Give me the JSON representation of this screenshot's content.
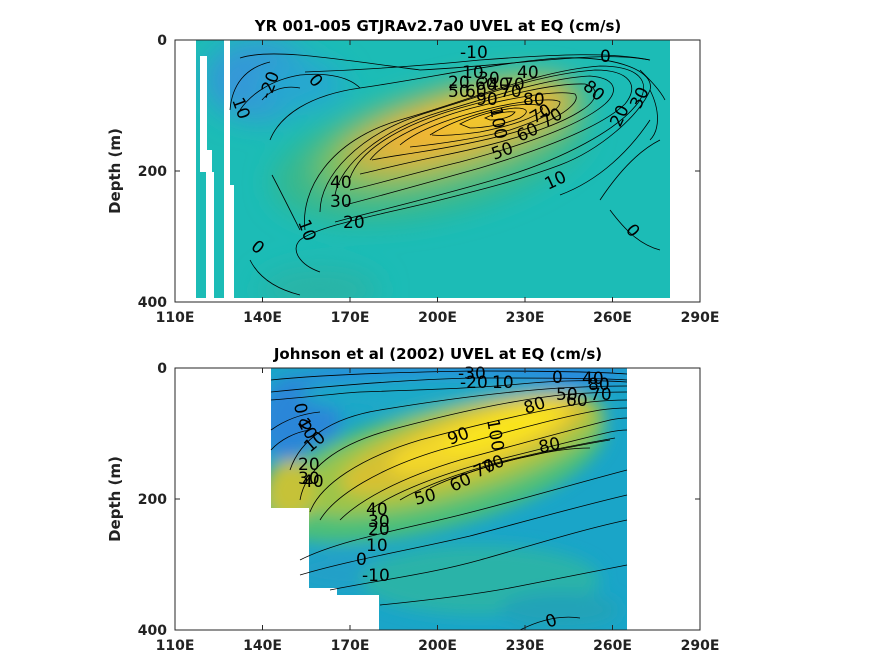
{
  "chart_data": [
    {
      "type": "contour",
      "title": "YR 001-005 GTJRAv2.7a0 UVEL at EQ (cm/s)",
      "ylabel": "Depth (m)",
      "xlabel": "",
      "xticks": [
        "110E",
        "140E",
        "170E",
        "200E",
        "230E",
        "260E",
        "290E"
      ],
      "yticks": [
        "0",
        "200",
        "400"
      ],
      "xlim": [
        110,
        290
      ],
      "ylim": [
        0,
        400
      ],
      "y_reversed": true,
      "contour_levels": [
        -30,
        -20,
        -10,
        0,
        10,
        20,
        30,
        40,
        50,
        60,
        70,
        80,
        90,
        100
      ],
      "contour_labels": [
        "-10",
        "-20",
        "10",
        "0",
        "20",
        "10",
        "30",
        "40",
        "50",
        "60",
        "70",
        "80",
        "90",
        "100",
        "40",
        "60",
        "70",
        "80",
        "0",
        "20",
        "30",
        "70",
        "50",
        "60",
        "70",
        "10",
        "40",
        "30",
        "20",
        "10",
        "0",
        "0"
      ],
      "core": {
        "lon": 225,
        "depth": 115,
        "max_speed": 100
      },
      "colormap": "parula"
    },
    {
      "type": "contour",
      "title": "Johnson et al (2002) UVEL at EQ (cm/s)",
      "ylabel": "Depth (m)",
      "xlabel": "",
      "xticks": [
        "110E",
        "140E",
        "170E",
        "200E",
        "230E",
        "260E",
        "290E"
      ],
      "yticks": [
        "0",
        "200",
        "400"
      ],
      "xlim": [
        110,
        290
      ],
      "ylim": [
        0,
        400
      ],
      "y_reversed": true,
      "data_extent_lon": [
        143,
        265
      ],
      "contour_levels": [
        -30,
        -20,
        -10,
        0,
        10,
        20,
        30,
        40,
        50,
        60,
        70,
        80,
        90,
        100
      ],
      "contour_labels": [
        "-30",
        "-20",
        "10",
        "0",
        "10",
        "0",
        "10",
        "20",
        "30",
        "40",
        "80",
        "0",
        "50",
        "60",
        "70",
        "80",
        "40",
        "90",
        "100",
        "70",
        "80",
        "60",
        "70",
        "50",
        "40",
        "30",
        "20",
        "10",
        "0",
        "-10",
        "0"
      ],
      "core": {
        "lon": 215,
        "depth": 120,
        "max_speed": 100
      },
      "colormap": "parula"
    }
  ]
}
